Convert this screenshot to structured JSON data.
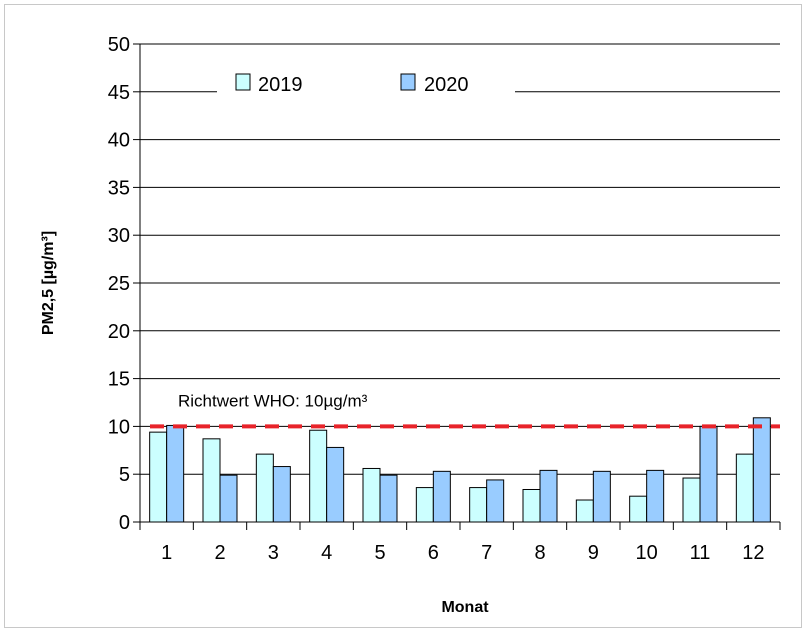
{
  "chart_data": {
    "type": "bar",
    "title": "",
    "xlabel": "Monat",
    "ylabel": "PM2,5 [µg/m³]",
    "ylim": [
      0,
      50
    ],
    "yticks": [
      0,
      5,
      10,
      15,
      20,
      25,
      30,
      35,
      40,
      45,
      50
    ],
    "categories": [
      "1",
      "2",
      "3",
      "4",
      "5",
      "6",
      "7",
      "8",
      "9",
      "10",
      "11",
      "12"
    ],
    "series": [
      {
        "name": "2019",
        "color": "#ccffff",
        "values": [
          9.4,
          8.7,
          7.1,
          9.6,
          5.6,
          3.6,
          3.6,
          3.4,
          2.3,
          2.7,
          4.6,
          7.1
        ]
      },
      {
        "name": "2020",
        "color": "#99ccff",
        "values": [
          10.1,
          4.9,
          5.8,
          7.8,
          4.9,
          5.3,
          4.4,
          5.4,
          5.3,
          5.4,
          10.0,
          10.9
        ]
      }
    ],
    "reference_line": {
      "value": 10,
      "label": "Richtwert WHO: 10µg/m³",
      "color": "#e8242a",
      "style": "dashed"
    },
    "grid": true,
    "legend": "top"
  }
}
